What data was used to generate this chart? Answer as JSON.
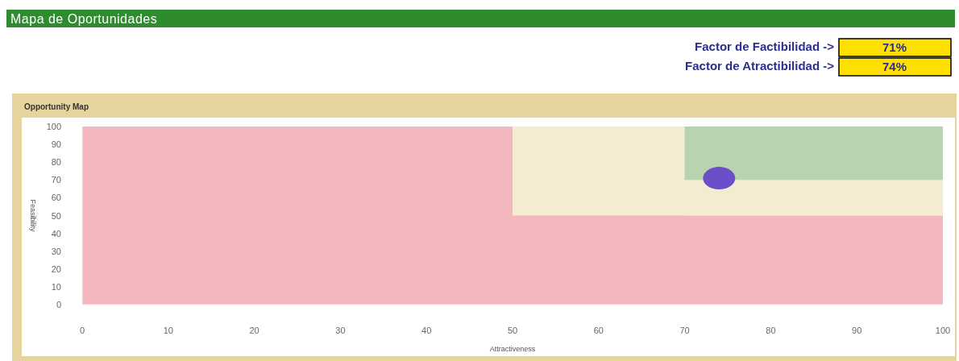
{
  "chart_data": {
    "type": "scatter",
    "title": "Mapa de Oportunidades",
    "subtitle": "Opportunity Map",
    "xlabel": "Attractiveness",
    "ylabel": "Feasibility",
    "annotations": [
      "Factor de Factibilidad ->",
      "71%",
      "Factor de Atractibilidad ->",
      "74%"
    ],
    "x": [
      74
    ],
    "values": [
      71
    ],
    "color": "#6a4fc8",
    "marker": "circle",
    "xlim": [
      0,
      100
    ],
    "ylim": [
      0,
      100
    ],
    "xticks": [
      0,
      10,
      20,
      30,
      40,
      50,
      60,
      70,
      80,
      90,
      100
    ],
    "yticks": [
      0,
      10,
      20,
      30,
      40,
      50,
      60,
      70,
      80,
      90,
      100
    ],
    "bands": [
      {
        "axis": "y",
        "from": 50,
        "to": 100,
        "color": "#f3ecd0"
      },
      {
        "axis": "y",
        "from": 70,
        "to": 100,
        "color": "#b9d3b0"
      },
      {
        "axis": "x",
        "from": 50,
        "to": 70,
        "color": "#f3ecd0"
      },
      {
        "axis": "x",
        "from": 0,
        "to": 50,
        "color": "#f2b8bd"
      },
      {
        "axis": "y",
        "from": 0,
        "to": 50,
        "color": "#f2b8bd"
      }
    ],
    "grid": false
  }
}
